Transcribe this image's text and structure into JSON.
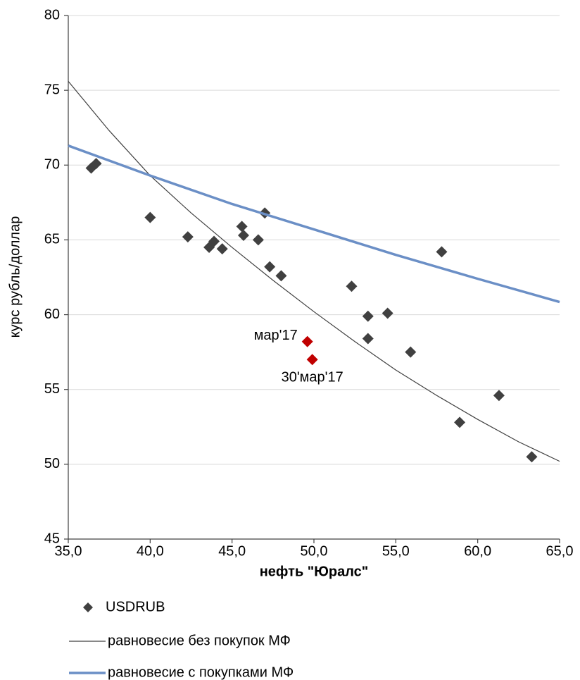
{
  "chart_data": {
    "type": "scatter",
    "xlabel": "нефть \"Юралс\"",
    "ylabel": "курс рубль/доллар",
    "xlim": [
      35,
      65
    ],
    "ylim": [
      45,
      80
    ],
    "xticks": [
      {
        "value": 35,
        "label": "35,0"
      },
      {
        "value": 40,
        "label": "40,0"
      },
      {
        "value": 45,
        "label": "45,0"
      },
      {
        "value": 50,
        "label": "50,0"
      },
      {
        "value": 55,
        "label": "55,0"
      },
      {
        "value": 60,
        "label": "60,0"
      },
      {
        "value": 65,
        "label": "65,0"
      }
    ],
    "yticks": [
      45,
      50,
      55,
      60,
      65,
      70,
      75,
      80
    ],
    "grid": true,
    "legend": "bottom",
    "series": [
      {
        "name": "USDRUB",
        "kind": "scatter",
        "color": "#404040",
        "x": [
          36.4,
          36.7,
          40.0,
          42.3,
          43.6,
          43.9,
          44.4,
          45.6,
          45.7,
          47.0,
          46.6,
          47.3,
          48.0,
          52.3,
          53.3,
          53.3,
          54.5,
          55.9,
          57.8,
          58.9,
          61.3,
          63.3
        ],
        "values": [
          69.8,
          70.1,
          66.5,
          65.2,
          64.5,
          64.9,
          64.4,
          65.9,
          65.3,
          66.8,
          65.0,
          63.2,
          62.6,
          61.9,
          59.9,
          58.4,
          60.1,
          57.5,
          64.2,
          52.8,
          54.6,
          50.5
        ]
      },
      {
        "name": "равновесие без покупок МФ",
        "kind": "line",
        "color": "#404040",
        "x": [
          35,
          37.5,
          40,
          42.5,
          45,
          47.5,
          50,
          52.5,
          55,
          57.5,
          60,
          62.5,
          65
        ],
        "values": [
          75.6,
          72.3,
          69.3,
          66.8,
          64.5,
          62.3,
          60.2,
          58.2,
          56.3,
          54.6,
          53.0,
          51.5,
          50.2
        ]
      },
      {
        "name": "равновесие с покупками МФ",
        "kind": "line",
        "color": "#6b8fc6",
        "x": [
          35,
          40,
          45,
          50,
          55,
          60,
          65
        ],
        "values": [
          71.3,
          69.3,
          67.4,
          65.7,
          64.0,
          62.4,
          60.85
        ]
      }
    ],
    "annotations": [
      {
        "text": "мар'17",
        "x": 49.6,
        "y": 58.2,
        "color": "#c00000"
      },
      {
        "text": "30'мар'17",
        "x": 49.9,
        "y": 57.0,
        "color": "#c00000"
      }
    ]
  }
}
